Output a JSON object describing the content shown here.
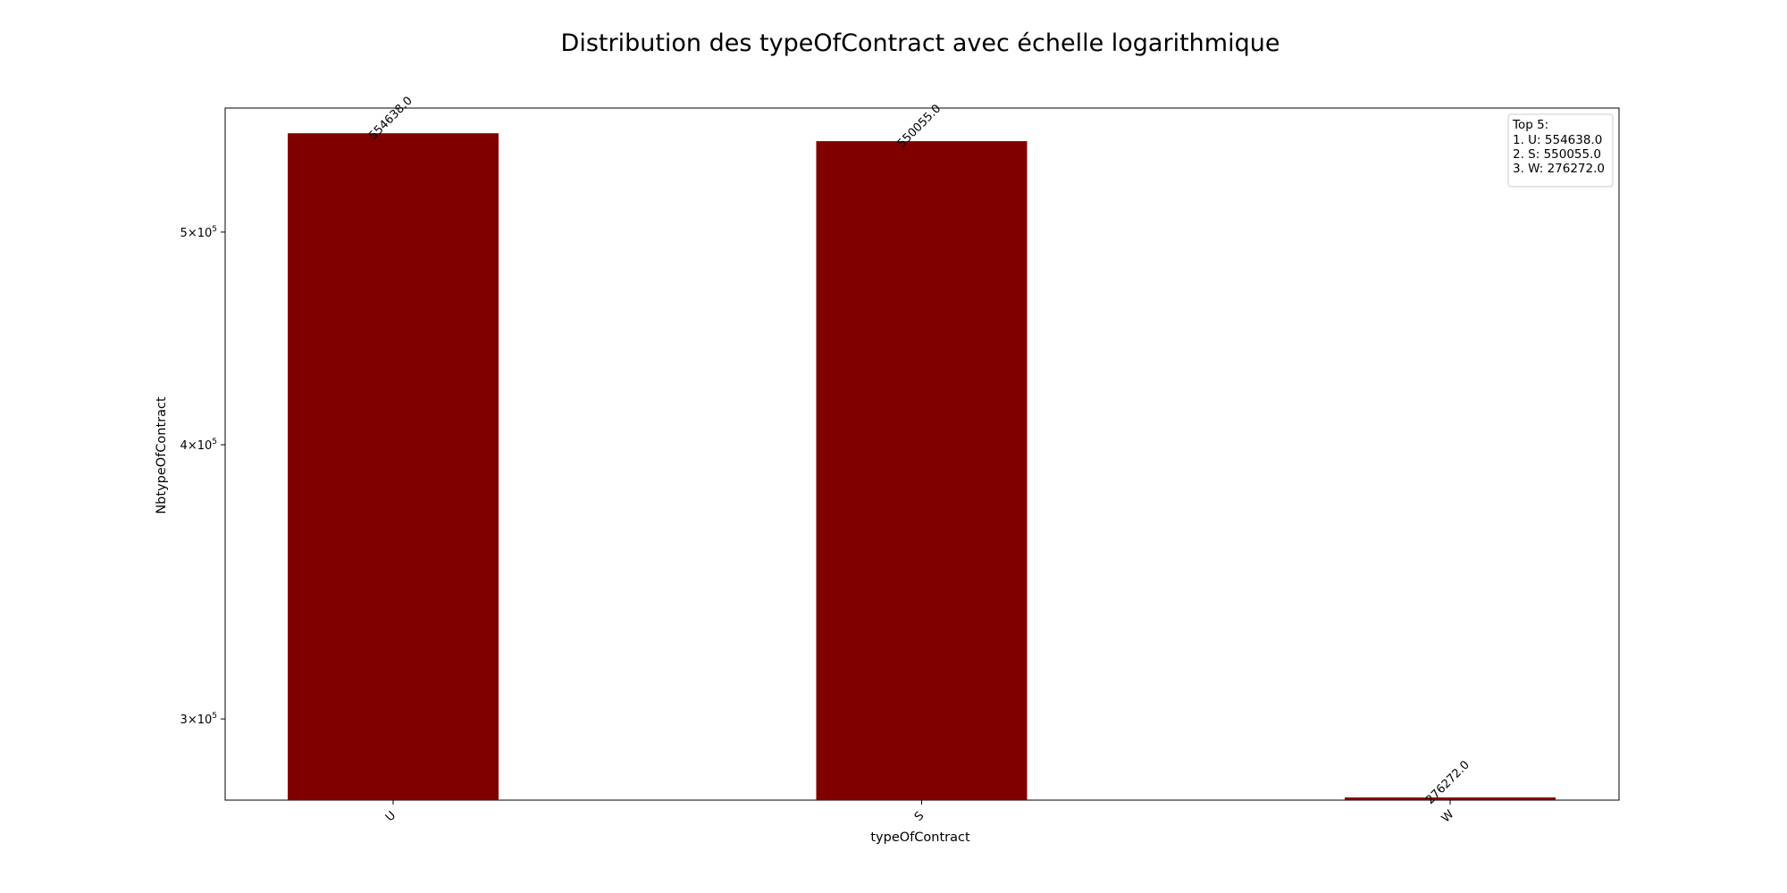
{
  "chart_data": {
    "type": "bar",
    "title": "Distribution des typeOfContract avec échelle logarithmique",
    "xlabel": "typeOfContract",
    "ylabel": "NbtypeOfContract",
    "yscale": "log",
    "ylim": [
      275500,
      569500
    ],
    "categories": [
      "U",
      "S",
      "W"
    ],
    "values": [
      554638.0,
      550055.0,
      276272.0
    ],
    "value_labels": [
      "554638.0",
      "550055.0",
      "276272.0"
    ],
    "y_ticks": [
      {
        "value": 500000,
        "mantissa": "5",
        "base": "10",
        "exp": "5"
      },
      {
        "value": 400000,
        "mantissa": "4",
        "base": "10",
        "exp": "5"
      },
      {
        "value": 300000,
        "mantissa": "3",
        "base": "10",
        "exp": "5"
      }
    ],
    "bar_color": "#800000",
    "legend": {
      "position": "top-right",
      "lines": [
        "Top 5:",
        "1. U: 554638.0",
        "2. S: 550055.0",
        "3. W: 276272.0"
      ]
    }
  }
}
